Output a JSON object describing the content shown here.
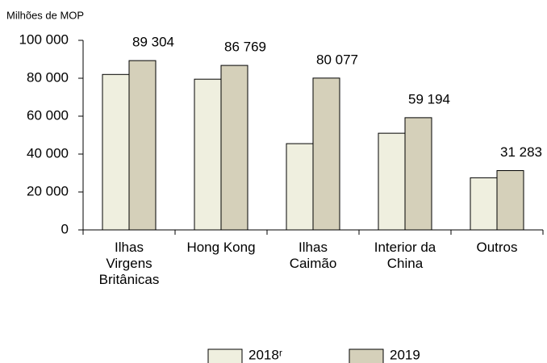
{
  "chart_data": {
    "type": "bar",
    "y_label": "Milhões de MOP",
    "categories": [
      "Ilhas Virgens Britânicas",
      "Hong Kong",
      "Ilhas Caimão",
      "Interior da China",
      "Outros"
    ],
    "series": [
      {
        "name": "2018ʳ",
        "color": "#efefdf",
        "values": [
          82000,
          79500,
          45500,
          51000,
          27500
        ]
      },
      {
        "name": "2019",
        "color": "#d5d0ba",
        "values": [
          89304,
          86769,
          80077,
          59194,
          31283
        ],
        "value_labels": [
          "89 304",
          "86 769",
          "80 077",
          "59 194",
          "31 283"
        ]
      }
    ],
    "ylim": [
      0,
      100000
    ],
    "yticks": [
      0,
      {
        "value": 20000,
        "label": "20 000"
      },
      {
        "value": 40000,
        "label": "40 000"
      },
      {
        "value": 60000,
        "label": "60 000"
      },
      {
        "value": 80000,
        "label": "80 000"
      },
      {
        "value": 100000,
        "label": "100 000"
      }
    ],
    "legend": "bottom"
  }
}
